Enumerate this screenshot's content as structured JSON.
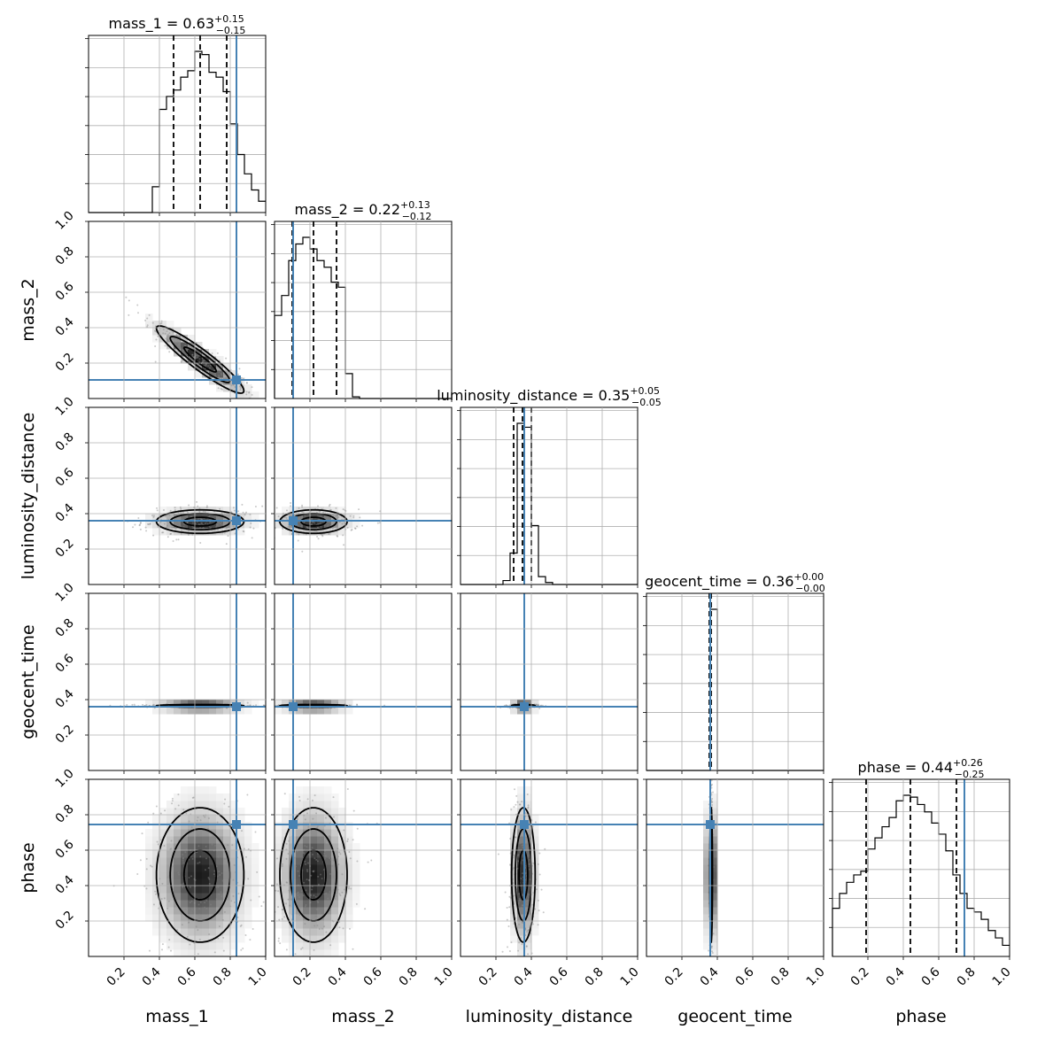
{
  "chart_data": {
    "type": "corner",
    "parameters": [
      "mass_1",
      "mass_2",
      "luminosity_distance",
      "geocent_time",
      "phase"
    ],
    "axis_labels": [
      "mass_1",
      "mass_2",
      "luminosity_distance",
      "geocent_time",
      "phase"
    ],
    "titles": [
      {
        "name": "mass_1",
        "median": "0.63",
        "plus": "+0.15",
        "minus": "−0.15"
      },
      {
        "name": "mass_2",
        "median": "0.22",
        "plus": "+0.13",
        "minus": "−0.12"
      },
      {
        "name": "luminosity_distance",
        "median": "0.35",
        "plus": "+0.05",
        "minus": "−0.05"
      },
      {
        "name": "geocent_time",
        "median": "0.36",
        "plus": "+0.00",
        "minus": "−0.00"
      },
      {
        "name": "phase",
        "median": "0.44",
        "plus": "+0.26",
        "minus": "−0.25"
      }
    ],
    "range": [
      0,
      1
    ],
    "tick_values": [
      0.2,
      0.4,
      0.6,
      0.8,
      1.0
    ],
    "tick_labels": [
      "0.2",
      "0.4",
      "0.6",
      "0.8",
      "1.0"
    ],
    "truths": [
      0.835,
      0.105,
      0.36,
      0.36,
      0.745
    ],
    "quantiles": [
      [
        0.48,
        0.63,
        0.78
      ],
      [
        0.1,
        0.22,
        0.35
      ],
      [
        0.3,
        0.35,
        0.4
      ],
      [
        0.355,
        0.36,
        0.365
      ],
      [
        0.19,
        0.44,
        0.7
      ]
    ],
    "histograms": [
      {
        "bins": [
          0.0,
          0.04,
          0.08,
          0.12,
          0.16,
          0.2,
          0.24,
          0.28,
          0.32,
          0.36,
          0.4,
          0.44,
          0.48,
          0.52,
          0.56,
          0.6,
          0.64,
          0.68,
          0.72,
          0.76,
          0.8,
          0.84,
          0.88,
          0.92,
          0.96,
          1.0
        ],
        "counts": [
          0,
          0,
          0,
          0,
          0,
          0,
          0,
          0,
          0,
          0.16,
          0.64,
          0.72,
          0.76,
          0.84,
          0.88,
          1.0,
          0.98,
          0.87,
          0.84,
          0.75,
          0.55,
          0.36,
          0.24,
          0.14,
          0.07
        ]
      },
      {
        "bins": [
          0.0,
          0.04,
          0.08,
          0.12,
          0.16,
          0.2,
          0.24,
          0.28,
          0.32,
          0.36,
          0.4,
          0.44,
          0.48,
          0.52,
          0.56,
          0.6,
          0.64,
          0.68,
          0.72,
          0.76,
          0.8,
          0.84,
          0.88,
          0.92,
          0.96,
          1.0
        ],
        "counts": [
          0.5,
          0.62,
          0.83,
          0.93,
          0.97,
          0.9,
          0.83,
          0.79,
          0.7,
          0.67,
          0.15,
          0.01,
          0,
          0,
          0,
          0,
          0,
          0,
          0,
          0,
          0,
          0,
          0,
          0,
          0
        ]
      },
      {
        "bins": [
          0.0,
          0.04,
          0.08,
          0.12,
          0.16,
          0.2,
          0.24,
          0.28,
          0.32,
          0.36,
          0.4,
          0.44,
          0.48,
          0.52,
          0.56,
          0.6,
          0.64,
          0.68,
          0.72,
          0.76,
          0.8,
          0.84,
          0.88,
          0.92,
          0.96,
          1.0
        ],
        "counts": [
          0,
          0,
          0,
          0,
          0,
          0,
          0.02,
          0.16,
          0.82,
          0.8,
          0.3,
          0.04,
          0.01,
          0,
          0,
          0,
          0,
          0,
          0,
          0,
          0,
          0,
          0,
          0,
          0
        ]
      },
      {
        "bins": [
          0.0,
          0.04,
          0.08,
          0.12,
          0.16,
          0.2,
          0.24,
          0.28,
          0.32,
          0.36,
          0.4,
          0.44,
          0.48,
          0.52,
          0.56,
          0.6,
          0.64,
          0.68,
          0.72,
          0.76,
          0.8,
          0.84,
          0.88,
          0.92,
          0.96,
          1.0
        ],
        "counts": [
          0,
          0,
          0,
          0,
          0,
          0,
          0,
          0,
          0,
          1.0,
          0,
          0,
          0,
          0,
          0,
          0,
          0,
          0,
          0,
          0,
          0,
          0,
          0,
          0,
          0
        ]
      },
      {
        "bins": [
          0.0,
          0.04,
          0.08,
          0.12,
          0.16,
          0.2,
          0.24,
          0.28,
          0.32,
          0.36,
          0.4,
          0.44,
          0.48,
          0.52,
          0.56,
          0.6,
          0.64,
          0.68,
          0.72,
          0.76,
          0.8,
          0.84,
          0.88,
          0.92,
          0.96,
          1.0
        ],
        "counts": [
          0.26,
          0.34,
          0.4,
          0.44,
          0.46,
          0.58,
          0.64,
          0.7,
          0.75,
          0.84,
          0.87,
          0.86,
          0.82,
          0.78,
          0.72,
          0.66,
          0.57,
          0.44,
          0.34,
          0.26,
          0.24,
          0.2,
          0.14,
          0.1,
          0.06
        ]
      }
    ],
    "grid": true,
    "colors": {
      "truth": "#4682b4",
      "contour": "#000000",
      "hist": "#000000"
    }
  }
}
